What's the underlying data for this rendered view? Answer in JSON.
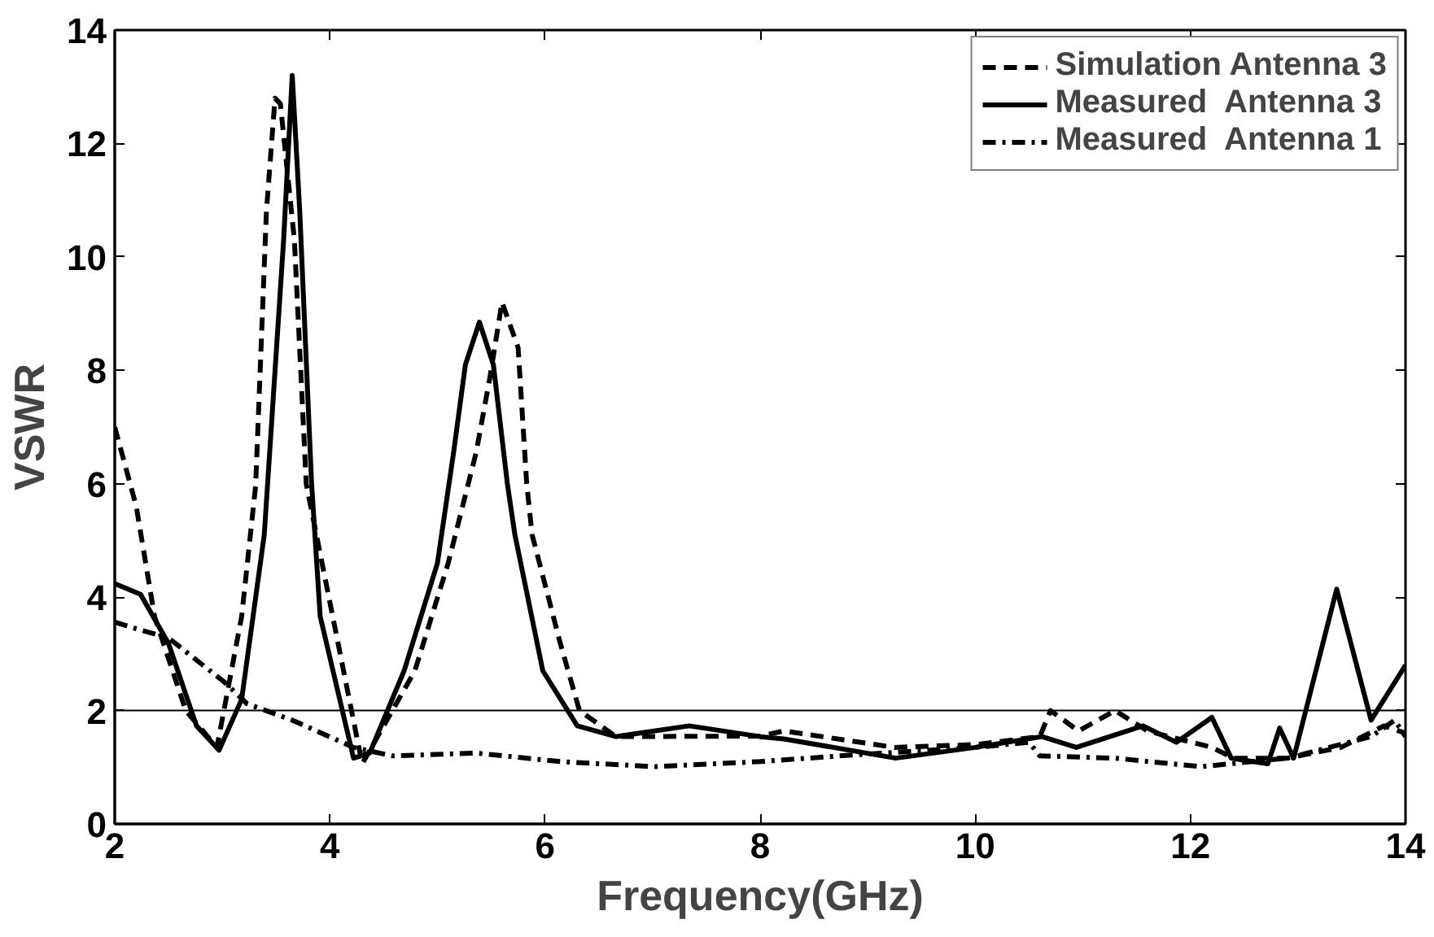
{
  "chart_data": {
    "type": "line",
    "xlabel": "Frequency(GHz)",
    "ylabel": "VSWR",
    "xlim": [
      2,
      14
    ],
    "ylim": [
      0,
      14
    ],
    "xticks": [
      2,
      4,
      6,
      8,
      10,
      12,
      14
    ],
    "yticks": [
      0,
      2,
      4,
      6,
      8,
      10,
      12,
      14
    ],
    "grid": false,
    "legend": "top right",
    "marker": "none",
    "ref_lines": [
      {
        "axis": "y",
        "value": 2,
        "color": "#000000"
      }
    ],
    "series": [
      {
        "name": "Simulation Antenna 3",
        "color": "#000000",
        "line_style": "dashed",
        "x": [
          2,
          2.2,
          2.37,
          2.66,
          2.95,
          3.18,
          3.31,
          3.41,
          3.49,
          3.54,
          3.67,
          3.78,
          4.3,
          4.79,
          5.1,
          5.36,
          5.49,
          5.6,
          5.75,
          5.83,
          5.88,
          6.14,
          6.32,
          6.66,
          8,
          8.22,
          9.25,
          10,
          10.6,
          10.7,
          10.96,
          11.3,
          11.6,
          12.2,
          12.4,
          12.9,
          13.4,
          13.8,
          14
        ],
        "values": [
          7.0,
          5.6,
          3.66,
          2.0,
          1.35,
          3.66,
          5.97,
          10.8,
          12.8,
          12.7,
          10.3,
          6.0,
          1.06,
          2.7,
          4.6,
          6.55,
          7.9,
          9.2,
          8.4,
          6.0,
          5.1,
          3.2,
          2.0,
          1.54,
          1.55,
          1.64,
          1.35,
          1.4,
          1.54,
          2.0,
          1.64,
          2.0,
          1.64,
          1.35,
          1.16,
          1.16,
          1.35,
          1.73,
          1.6
        ]
      },
      {
        "name": "Measured  Antenna 3",
        "color": "#000000",
        "line_style": "solid",
        "x": [
          2,
          2.24,
          2.5,
          2.76,
          2.97,
          3.18,
          3.39,
          3.57,
          3.65,
          3.72,
          3.83,
          3.91,
          4.22,
          4.37,
          4.69,
          5.0,
          5.15,
          5.26,
          5.39,
          5.52,
          5.65,
          5.72,
          5.98,
          6.3,
          6.66,
          7.34,
          8,
          8.22,
          9.26,
          10,
          10.62,
          10.94,
          11.56,
          11.87,
          12.2,
          12.38,
          12.72,
          12.83,
          12.96,
          13.36,
          13.68,
          14
        ],
        "values": [
          4.24,
          4.05,
          3.18,
          1.73,
          1.3,
          2.2,
          5.1,
          10.3,
          13.2,
          10.8,
          6.0,
          3.66,
          1.16,
          1.25,
          2.7,
          4.6,
          6.55,
          8.1,
          8.85,
          8.1,
          6.0,
          5.1,
          2.7,
          1.73,
          1.54,
          1.73,
          1.54,
          1.5,
          1.16,
          1.35,
          1.54,
          1.35,
          1.73,
          1.44,
          1.88,
          1.16,
          1.06,
          1.69,
          1.16,
          4.14,
          1.83,
          2.8
        ]
      },
      {
        "name": "Measured  Antenna 1",
        "color": "#000000",
        "line_style": "dashdot",
        "x": [
          2,
          2.24,
          2.5,
          3.02,
          3.23,
          3.65,
          4.22,
          4.58,
          5.36,
          6.14,
          7.02,
          8,
          8.74,
          10,
          10.5,
          10.6,
          11.3,
          12.1,
          12.9,
          13.68,
          13.9,
          14
        ],
        "values": [
          3.56,
          3.42,
          3.28,
          2.5,
          2.12,
          1.83,
          1.35,
          1.2,
          1.25,
          1.1,
          1.01,
          1.1,
          1.2,
          1.35,
          1.44,
          1.2,
          1.16,
          1.01,
          1.16,
          1.54,
          1.83,
          1.54
        ]
      }
    ]
  }
}
